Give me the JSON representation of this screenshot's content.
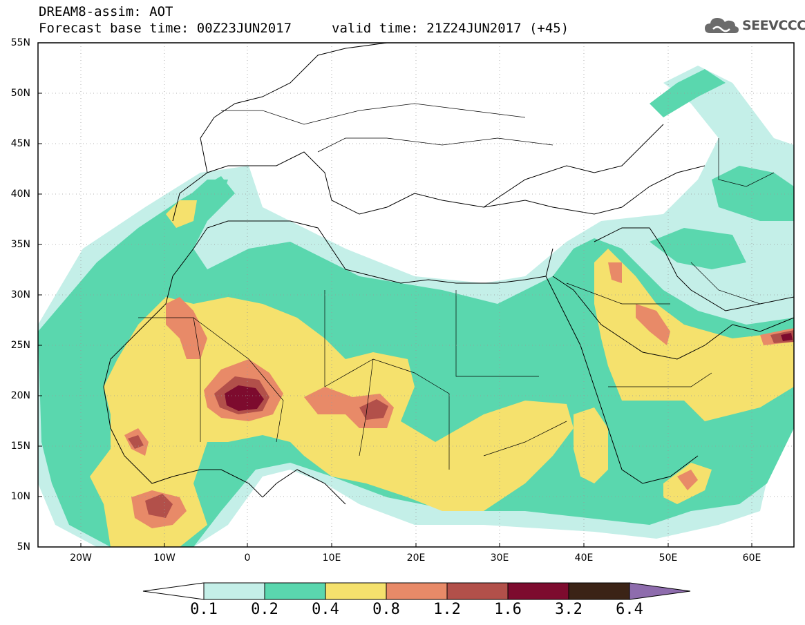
{
  "header": {
    "title": "DREAM8-assim: AOT",
    "base_time": "Forecast base time: 00Z23JUN2017",
    "valid_time": "valid time: 21Z24JUN2017 (+45)",
    "logo_text": "SEEVCCC",
    "logo_icon": "cloud-icon"
  },
  "map": {
    "projection": "lat-lon",
    "lon_range": [
      -25,
      65
    ],
    "lat_range": [
      5,
      55
    ],
    "lat_labels": [
      "55N",
      "50N",
      "45N",
      "40N",
      "35N",
      "30N",
      "25N",
      "20N",
      "15N",
      "10N",
      "5N"
    ],
    "lon_labels": [
      "20W",
      "10W",
      "0",
      "10E",
      "20E",
      "30E",
      "40E",
      "50E",
      "60E"
    ],
    "grid": "dotted",
    "background": "#ffffff"
  },
  "chart_data": {
    "type": "heatmap",
    "title": "DREAM8-assim: AOT",
    "variable": "AOT",
    "levels": [
      "0.1",
      "0.2",
      "0.4",
      "0.8",
      "1.2",
      "1.6",
      "3.2",
      "6.4"
    ],
    "colors": [
      "#c4efe8",
      "#5ad7ae",
      "#f5e16d",
      "#e88a68",
      "#b2504a",
      "#7d0b2e",
      "#3b2316",
      "#8e6cad"
    ],
    "xlim": [
      -25,
      65
    ],
    "ylim": [
      5,
      55
    ],
    "extend": "both"
  }
}
